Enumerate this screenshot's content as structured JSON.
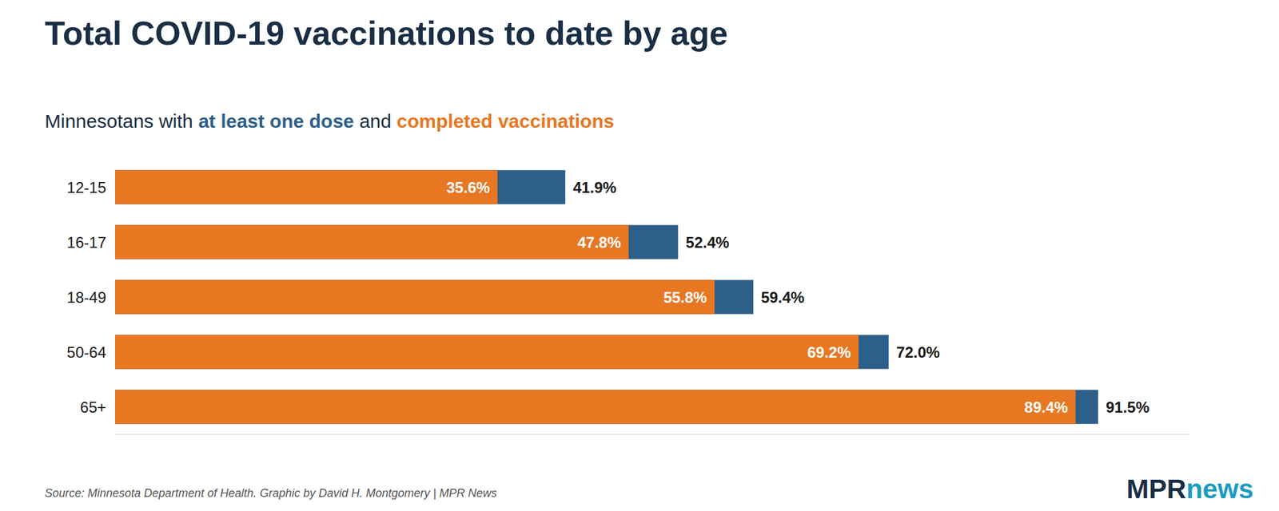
{
  "chart_data": {
    "type": "bar",
    "orientation": "horizontal",
    "stacked": false,
    "title": "Total COVID-19 vaccinations to date by age",
    "subtitle": "Minnesotans with at least one dose and completed vaccinations",
    "categories": [
      "12-15",
      "16-17",
      "18-49",
      "50-64",
      "65+"
    ],
    "series": [
      {
        "name": "completed vaccinations",
        "color": "#e87722",
        "values": [
          35.6,
          47.8,
          55.8,
          69.2,
          89.4
        ],
        "value_labels": [
          "35.6%",
          "47.8%",
          "55.8%",
          "69.2%",
          "89.4%"
        ]
      },
      {
        "name": "at least one dose",
        "color": "#2c5f8a",
        "values": [
          41.9,
          52.4,
          59.4,
          72.0,
          91.5
        ],
        "value_labels": [
          "41.9%",
          "52.4%",
          "59.4%",
          "72.0%",
          "91.5%"
        ]
      }
    ],
    "xlim": [
      0,
      100
    ],
    "grid": false,
    "data_labels": true,
    "tick_labels": "y",
    "annotations": [
      "Source: Minnesota Department of Health. Graphic by David H. Montgomery | MPR News",
      "MPR",
      "news"
    ]
  }
}
